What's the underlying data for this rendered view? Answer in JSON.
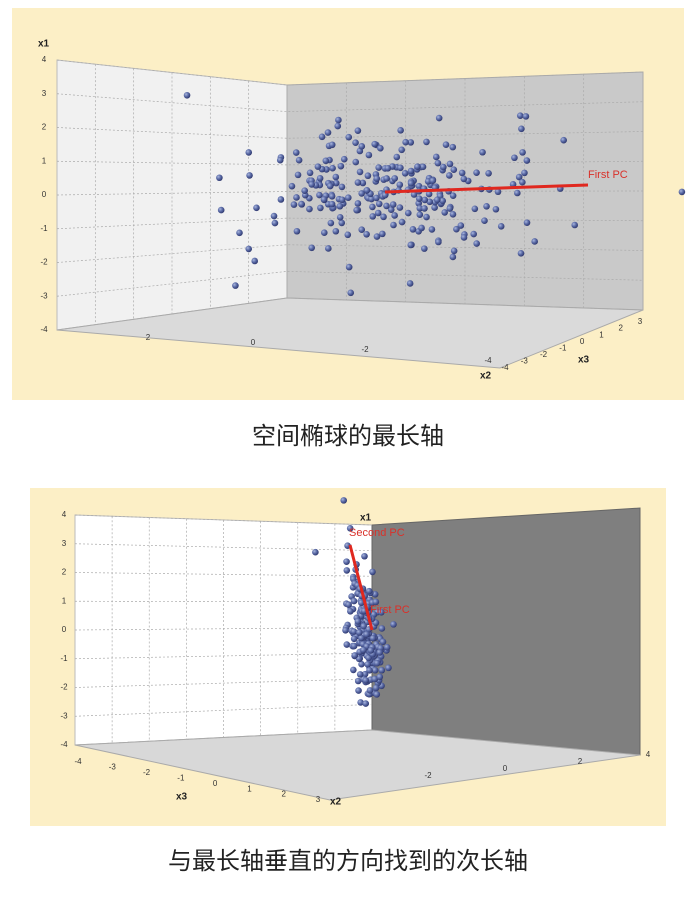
{
  "figures": [
    {
      "axis_labels": {
        "x1": "x1",
        "x2": "x2",
        "x3": "x3"
      },
      "x1_ticks": [
        "4",
        "3",
        "2",
        "1",
        "0",
        "-1",
        "-2",
        "-3",
        "-4"
      ],
      "x2_ticks": [
        "2",
        "0",
        "-2",
        "-4"
      ],
      "x3_ticks": [
        "-4",
        "-3",
        "-2",
        "-1",
        "0",
        "1",
        "2",
        "3"
      ],
      "annotations": [
        "First PC"
      ],
      "caption": "空间椭球的最长轴"
    },
    {
      "axis_labels": {
        "x1": "x1",
        "x2": "x2",
        "x3": "x3"
      },
      "x1_ticks": [
        "4",
        "3",
        "2",
        "1",
        "0",
        "-1",
        "-2",
        "-3",
        "-4"
      ],
      "x2_ticks": [
        "-2",
        "0",
        "2",
        "4"
      ],
      "x3_ticks": [
        "-4",
        "-3",
        "-2",
        "-1",
        "0",
        "1",
        "2",
        "3"
      ],
      "annotations": [
        "Second PC",
        "First PC"
      ],
      "caption": "与最长轴垂直的方向找到的次长轴"
    }
  ]
}
